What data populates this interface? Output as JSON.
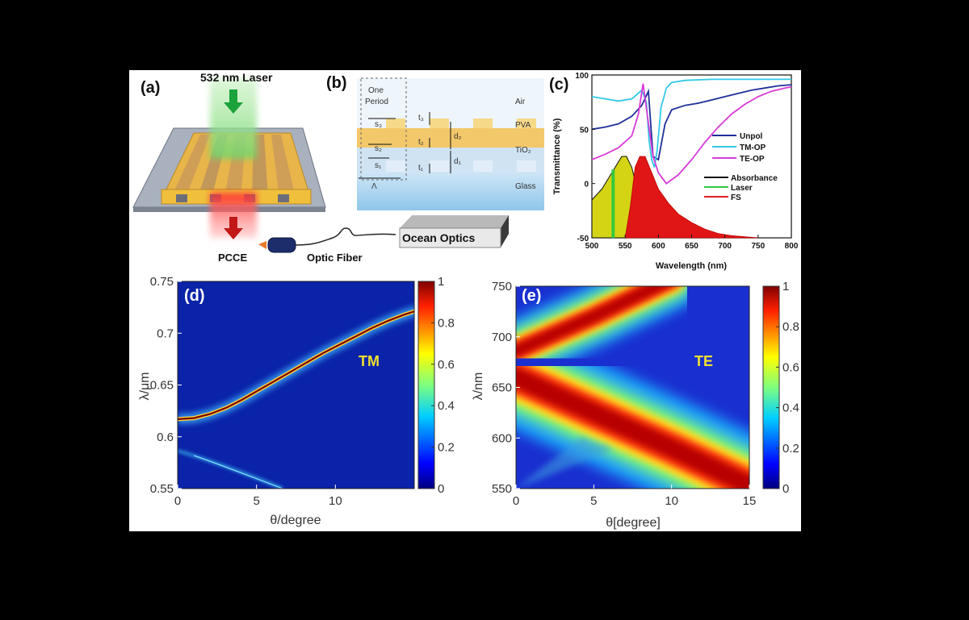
{
  "panels": {
    "a": {
      "label": "(a)",
      "laser_text": "532 nm Laser",
      "pcce_text": "PCCE",
      "fiber_text": "Optic Fiber",
      "box_text": "Ocean Optics",
      "colors": {
        "laser": "#2fb33a",
        "substrate": "#9aa4b4",
        "grating": "#e9b73c",
        "output": "#e23a2e"
      }
    },
    "b": {
      "label": "(b)",
      "one_period": [
        "One",
        "Period"
      ],
      "layers": {
        "air": "Air",
        "pva": "PVA",
        "tio2": "TiO₂",
        "glass": "Glass"
      },
      "dims": {
        "s3": "s₃",
        "s2": "s₂",
        "s1": "s₁",
        "t3": "t₃",
        "t2": "t₂",
        "t1": "t₁",
        "d2": "d₂",
        "d1": "d₁",
        "lambda": "Λ"
      }
    },
    "c": {
      "label": "(c)",
      "chart_data": {
        "type": "line",
        "xlabel": "Wavelength (nm)",
        "ylabel": "Transmittance (%)",
        "xlim": [
          500,
          800
        ],
        "ylim": [
          -50,
          100
        ],
        "xticks": [
          "500",
          "550",
          "600",
          "650",
          "700",
          "750",
          "800"
        ],
        "yticks": [
          "-50",
          "0",
          "50",
          "100"
        ],
        "legend_position": "right",
        "series": [
          {
            "name": "Unpol",
            "color": "#1f2f9a",
            "x": [
              500,
              520,
              540,
              560,
              575,
              585,
              592,
              600,
              610,
              620,
              640,
              660,
              680,
              700,
              720,
              740,
              760,
              780,
              800
            ],
            "y": [
              50,
              52,
              55,
              62,
              72,
              85,
              25,
              22,
              55,
              68,
              72,
              74,
              77,
              80,
              83,
              86,
              88,
              90,
              91
            ]
          },
          {
            "name": "TM-OP",
            "color": "#33c9e6",
            "x": [
              500,
              520,
              540,
              560,
              575,
              582,
              586,
              590,
              594,
              598,
              604,
              612,
              620,
              640,
              680,
              720,
              760,
              800
            ],
            "y": [
              80,
              78,
              76,
              78,
              86,
              75,
              40,
              22,
              15,
              30,
              70,
              88,
              93,
              95,
              96,
              96,
              96,
              96
            ]
          },
          {
            "name": "TE-OP",
            "color": "#d83cd8",
            "x": [
              500,
              520,
              540,
              560,
              570,
              577,
              584,
              592,
              600,
              612,
              630,
              650,
              670,
              690,
              710,
              730,
              750,
              770,
              790,
              800
            ],
            "y": [
              22,
              27,
              33,
              44,
              64,
              92,
              60,
              25,
              10,
              0,
              8,
              22,
              38,
              52,
              64,
              73,
              80,
              85,
              88,
              89
            ]
          },
          {
            "name": "Absorbance",
            "color": "#111111",
            "x": [
              500,
              515,
              530,
              545,
              552,
              560,
              570,
              580,
              587
            ],
            "y": [
              -15,
              -5,
              10,
              25,
              25,
              15,
              -10,
              -35,
              -50
            ]
          },
          {
            "name": "Laser",
            "color": "#35c83c",
            "x": [
              532,
              532
            ],
            "y": [
              -50,
              13
            ]
          },
          {
            "name": "FS",
            "color": "#e02020",
            "x": [
              550,
              558,
              565,
              572,
              580,
              590,
              600,
              615,
              630,
              650,
              670,
              690,
              710,
              730,
              750
            ],
            "y": [
              -50,
              -20,
              15,
              25,
              25,
              10,
              -5,
              -18,
              -28,
              -36,
              -42,
              -46,
              -48,
              -49,
              -50
            ]
          }
        ]
      }
    },
    "d": {
      "label": "(d)",
      "mode": "TM",
      "chart_data": {
        "type": "heatmap",
        "xlabel": "θ/degree",
        "ylabel": "λ/μm",
        "xlim": [
          0,
          15
        ],
        "ylim": [
          0.55,
          0.75
        ],
        "xticks": [
          "0",
          "5",
          "10"
        ],
        "yticks": [
          "0.55",
          "0.6",
          "0.65",
          "0.7",
          "0.75"
        ],
        "colorbar_ticks": [
          "0",
          "0.2",
          "0.4",
          "0.6",
          "0.8",
          "1"
        ],
        "bands": [
          {
            "x": [
              0,
              1,
              2,
              3,
              4,
              5,
              6,
              7,
              8,
              9,
              10,
              11,
              12,
              13,
              14,
              15
            ],
            "y": [
              0.617,
              0.618,
              0.622,
              0.628,
              0.636,
              0.645,
              0.654,
              0.663,
              0.672,
              0.681,
              0.689,
              0.697,
              0.705,
              0.712,
              0.718,
              0.723
            ]
          }
        ]
      }
    },
    "e": {
      "label": "(e)",
      "mode": "TE",
      "chart_data": {
        "type": "heatmap",
        "xlabel": "θ[degree]",
        "ylabel": "λ/nm",
        "xlim": [
          0,
          15
        ],
        "ylim": [
          550,
          750
        ],
        "xticks": [
          "0",
          "5",
          "10",
          "15"
        ],
        "yticks": [
          "550",
          "600",
          "650",
          "700",
          "750"
        ],
        "colorbar_ticks": [
          "0",
          "0.2",
          "0.4",
          "0.6",
          "0.8",
          "1"
        ],
        "bands": [
          {
            "x": [
              0,
              5,
              10
            ],
            "y": [
              686,
              720,
              757
            ]
          },
          {
            "x": [
              0,
              5,
              10,
              15
            ],
            "y": [
              660,
              625,
              590,
              553
            ]
          }
        ]
      }
    }
  }
}
